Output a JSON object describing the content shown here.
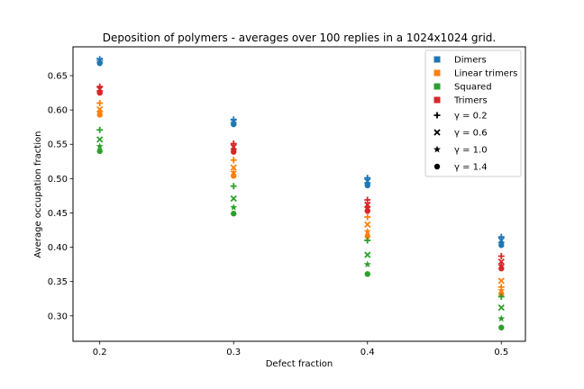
{
  "chart_data": {
    "type": "scatter",
    "title": "Deposition of polymers - averages over 100 replies in a 1024x1024 grid.",
    "xlabel": "Defect fraction",
    "ylabel": "Average occupation fraction",
    "x_ticks": [
      "0.2",
      "0.3",
      "0.4",
      "0.5"
    ],
    "y_ticks": [
      "0.30",
      "0.35",
      "0.40",
      "0.45",
      "0.50",
      "0.55",
      "0.60",
      "0.65"
    ],
    "xlim": [
      0.18,
      0.518
    ],
    "ylim": [
      0.263,
      0.692
    ],
    "grid": false,
    "legend_position": "top-right",
    "x": [
      0.2,
      0.3,
      0.4,
      0.5
    ],
    "polymers": [
      {
        "name": "Dimers",
        "color": "#1f77b4"
      },
      {
        "name": "Linear trimers",
        "color": "#ff7f0e"
      },
      {
        "name": "Squared",
        "color": "#2ca02c"
      },
      {
        "name": "Trimers",
        "color": "#d62728"
      }
    ],
    "gammas": [
      {
        "label": "γ = 0.2",
        "marker": "plus"
      },
      {
        "label": "γ = 0.6",
        "marker": "x"
      },
      {
        "label": "γ = 1.0",
        "marker": "star"
      },
      {
        "label": "γ = 1.4",
        "marker": "circle"
      }
    ],
    "series": [
      {
        "polymer": "Dimers",
        "gamma": "γ = 0.2",
        "values": [
          0.674,
          0.586,
          0.501,
          0.415
        ]
      },
      {
        "polymer": "Dimers",
        "gamma": "γ = 0.6",
        "values": [
          0.672,
          0.583,
          0.496,
          0.41
        ]
      },
      {
        "polymer": "Dimers",
        "gamma": "γ = 1.0",
        "values": [
          0.67,
          0.581,
          0.493,
          0.406
        ]
      },
      {
        "polymer": "Dimers",
        "gamma": "γ = 1.4",
        "values": [
          0.668,
          0.579,
          0.49,
          0.403
        ]
      },
      {
        "polymer": "Linear trimers",
        "gamma": "γ = 0.2",
        "values": [
          0.61,
          0.527,
          0.444,
          0.342
        ]
      },
      {
        "polymer": "Linear trimers",
        "gamma": "γ = 0.6",
        "values": [
          0.601,
          0.516,
          0.433,
          0.351
        ]
      },
      {
        "polymer": "Linear trimers",
        "gamma": "γ = 1.0",
        "values": [
          0.596,
          0.509,
          0.423,
          0.337
        ]
      },
      {
        "polymer": "Linear trimers",
        "gamma": "γ = 1.4",
        "values": [
          0.593,
          0.504,
          0.416,
          0.332
        ]
      },
      {
        "polymer": "Squared",
        "gamma": "γ = 0.2",
        "values": [
          0.571,
          0.489,
          0.41,
          0.328
        ]
      },
      {
        "polymer": "Squared",
        "gamma": "γ = 0.6",
        "values": [
          0.557,
          0.471,
          0.389,
          0.312
        ]
      },
      {
        "polymer": "Squared",
        "gamma": "γ = 1.0",
        "values": [
          0.547,
          0.458,
          0.375,
          0.296
        ]
      },
      {
        "polymer": "Squared",
        "gamma": "γ = 1.4",
        "values": [
          0.54,
          0.449,
          0.361,
          0.283
        ]
      },
      {
        "polymer": "Trimers",
        "gamma": "γ = 0.2",
        "values": [
          0.634,
          0.551,
          0.469,
          0.387
        ]
      },
      {
        "polymer": "Trimers",
        "gamma": "γ = 0.6",
        "values": [
          0.63,
          0.546,
          0.462,
          0.379
        ]
      },
      {
        "polymer": "Trimers",
        "gamma": "γ = 1.0",
        "values": [
          0.627,
          0.542,
          0.457,
          0.373
        ]
      },
      {
        "polymer": "Trimers",
        "gamma": "γ = 1.4",
        "values": [
          0.625,
          0.539,
          0.453,
          0.369
        ]
      }
    ]
  }
}
